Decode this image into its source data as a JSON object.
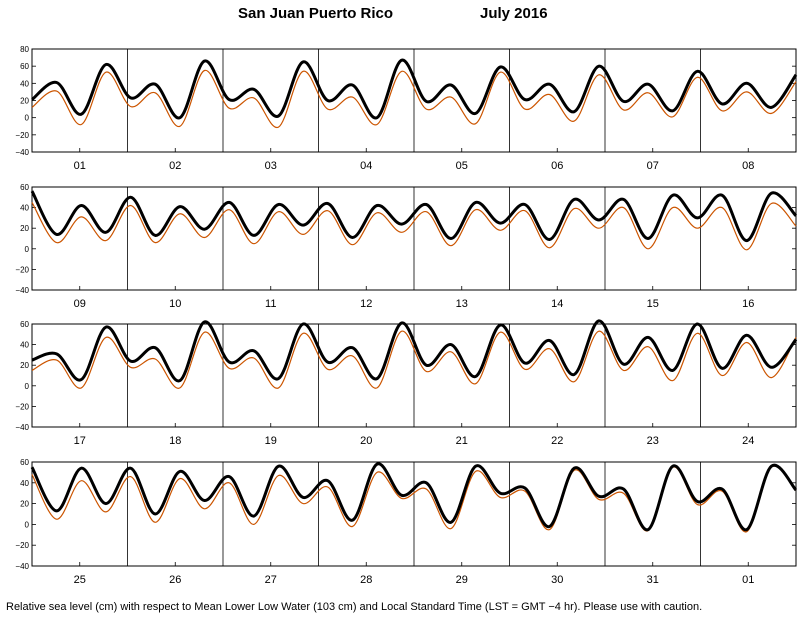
{
  "title": {
    "location": "San Juan Puerto Rico",
    "month": "July   2016"
  },
  "footer_note": "Relative sea level (cm) with respect to Mean Lower Low Water (103 cm) and Local Standard Time (LST = GMT −4 hr). Please use with caution.",
  "colors": {
    "observed": "#cc5500",
    "predicted": "#000000",
    "grid": "#000000"
  },
  "chart_data": [
    {
      "type": "line",
      "panel": 1,
      "x_day_labels": [
        "01",
        "02",
        "03",
        "04",
        "05",
        "06",
        "07",
        "08"
      ],
      "yticks": [
        "80",
        "60",
        "40",
        "20",
        "0",
        "−20",
        "−40"
      ],
      "ylim": [
        -40,
        80
      ],
      "grid": "vertical day boundaries",
      "series": [
        {
          "values": [
            12,
            31,
            -8,
            53,
            13,
            29,
            -10,
            55,
            11,
            23,
            -11,
            54,
            10,
            24,
            -8,
            54,
            10,
            24,
            -7,
            53,
            10,
            27,
            -4,
            50,
            9,
            29,
            1,
            47,
            8,
            30,
            5,
            42
          ]
        },
        {
          "values": [
            21,
            41,
            4,
            62,
            23,
            39,
            0,
            66,
            21,
            33,
            2,
            65,
            20,
            38,
            0,
            67,
            19,
            38,
            5,
            59,
            21,
            39,
            7,
            60,
            19,
            39,
            8,
            54,
            16,
            40,
            12,
            50
          ]
        }
      ]
    },
    {
      "type": "line",
      "panel": 2,
      "x_day_labels": [
        "09",
        "10",
        "11",
        "12",
        "13",
        "14",
        "15",
        "16"
      ],
      "yticks": [
        "60",
        "40",
        "20",
        "0",
        "−20",
        "−40"
      ],
      "ylim": [
        -40,
        60
      ],
      "grid": "vertical day boundaries",
      "series": [
        {
          "values": [
            45,
            6,
            31,
            8,
            42,
            6,
            34,
            11,
            38,
            5,
            36,
            14,
            37,
            4,
            35,
            16,
            36,
            3,
            38,
            18,
            37,
            1,
            39,
            20,
            40,
            0,
            40,
            20,
            40,
            -1,
            44,
            22
          ]
        },
        {
          "values": [
            56,
            14,
            42,
            16,
            50,
            13,
            41,
            19,
            45,
            13,
            43,
            23,
            44,
            11,
            42,
            24,
            43,
            10,
            45,
            25,
            43,
            9,
            48,
            28,
            48,
            10,
            52,
            30,
            52,
            8,
            54,
            32
          ]
        }
      ]
    },
    {
      "type": "line",
      "panel": 3,
      "x_day_labels": [
        "17",
        "18",
        "19",
        "20",
        "21",
        "22",
        "23",
        "24"
      ],
      "yticks": [
        "60",
        "40",
        "20",
        "0",
        "−20",
        "−40"
      ],
      "ylim": [
        -40,
        60
      ],
      "grid": "vertical day boundaries",
      "series": [
        {
          "values": [
            15,
            25,
            -2,
            47,
            18,
            26,
            -2,
            52,
            17,
            27,
            -2,
            51,
            16,
            29,
            -2,
            53,
            14,
            33,
            2,
            52,
            16,
            36,
            4,
            53,
            15,
            38,
            5,
            51,
            10,
            42,
            8,
            47
          ]
        },
        {
          "values": [
            25,
            31,
            6,
            57,
            24,
            37,
            5,
            62,
            23,
            34,
            7,
            60,
            23,
            37,
            7,
            61,
            20,
            40,
            9,
            59,
            22,
            44,
            11,
            63,
            21,
            47,
            15,
            60,
            17,
            49,
            18,
            45
          ]
        }
      ]
    },
    {
      "type": "line",
      "panel": 4,
      "x_day_labels": [
        "25",
        "26",
        "27",
        "28",
        "29",
        "30",
        "31",
        "01"
      ],
      "yticks": [
        "60",
        "40",
        "20",
        "0",
        "−20",
        "−40"
      ],
      "ylim": [
        -40,
        60
      ],
      "grid": "vertical day boundaries",
      "series": [
        {
          "values": [
            48,
            5,
            42,
            12,
            46,
            2,
            44,
            15,
            40,
            0,
            47,
            20,
            36,
            -2,
            50,
            25,
            34,
            -4,
            51,
            26,
            32,
            -5,
            52,
            24,
            30,
            -6,
            55,
            19,
            32,
            -7,
            55,
            33
          ]
        },
        {
          "values": [
            55,
            13,
            54,
            20,
            54,
            10,
            51,
            23,
            46,
            8,
            56,
            26,
            42,
            4,
            58,
            28,
            40,
            2,
            56,
            30,
            35,
            -2,
            54,
            27,
            34,
            -5,
            56,
            22,
            34,
            -5,
            56,
            33
          ]
        }
      ]
    }
  ]
}
